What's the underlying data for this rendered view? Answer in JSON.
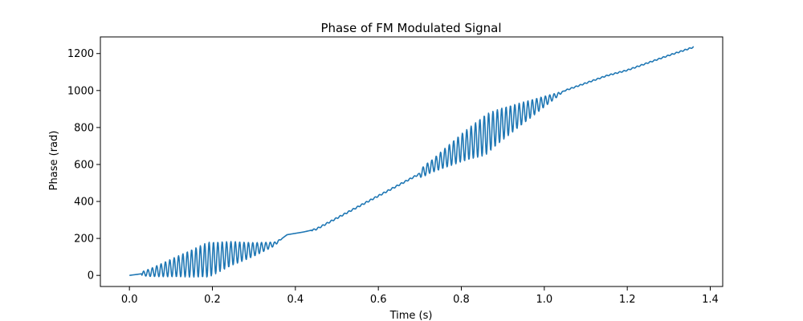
{
  "chart_data": {
    "type": "line",
    "title": "Phase of FM Modulated Signal",
    "xlabel": "Time (s)",
    "ylabel": "Phase (rad)",
    "xlim": [
      -0.07,
      1.43
    ],
    "ylim": [
      -60,
      1290
    ],
    "xticks": [
      0.0,
      0.2,
      0.4,
      0.6,
      0.8,
      1.0,
      1.2,
      1.4
    ],
    "xtick_labels": [
      "0.0",
      "0.2",
      "0.4",
      "0.6",
      "0.8",
      "1.0",
      "1.2",
      "1.4"
    ],
    "yticks": [
      0,
      200,
      400,
      600,
      800,
      1000,
      1200
    ],
    "ytick_labels": [
      "0",
      "200",
      "400",
      "600",
      "800",
      "1000",
      "1200"
    ],
    "grid": false,
    "line_color": "#1f77b4",
    "series": [
      {
        "x": [
          0.0,
          0.05,
          0.1,
          0.15,
          0.2,
          0.25,
          0.3,
          0.35,
          0.38,
          0.42,
          0.45,
          0.5,
          0.55,
          0.6,
          0.65,
          0.7,
          0.75,
          0.8,
          0.85,
          0.9,
          0.95,
          1.0,
          1.03,
          1.05,
          1.1,
          1.15,
          1.2,
          1.25,
          1.3,
          1.36
        ],
        "y": [
          0,
          15,
          40,
          65,
          90,
          120,
          140,
          170,
          220,
          235,
          250,
          310,
          370,
          430,
          490,
          550,
          620,
          690,
          750,
          820,
          880,
          940,
          975,
          1000,
          1040,
          1080,
          1110,
          1150,
          1190,
          1235
        ]
      }
    ]
  }
}
